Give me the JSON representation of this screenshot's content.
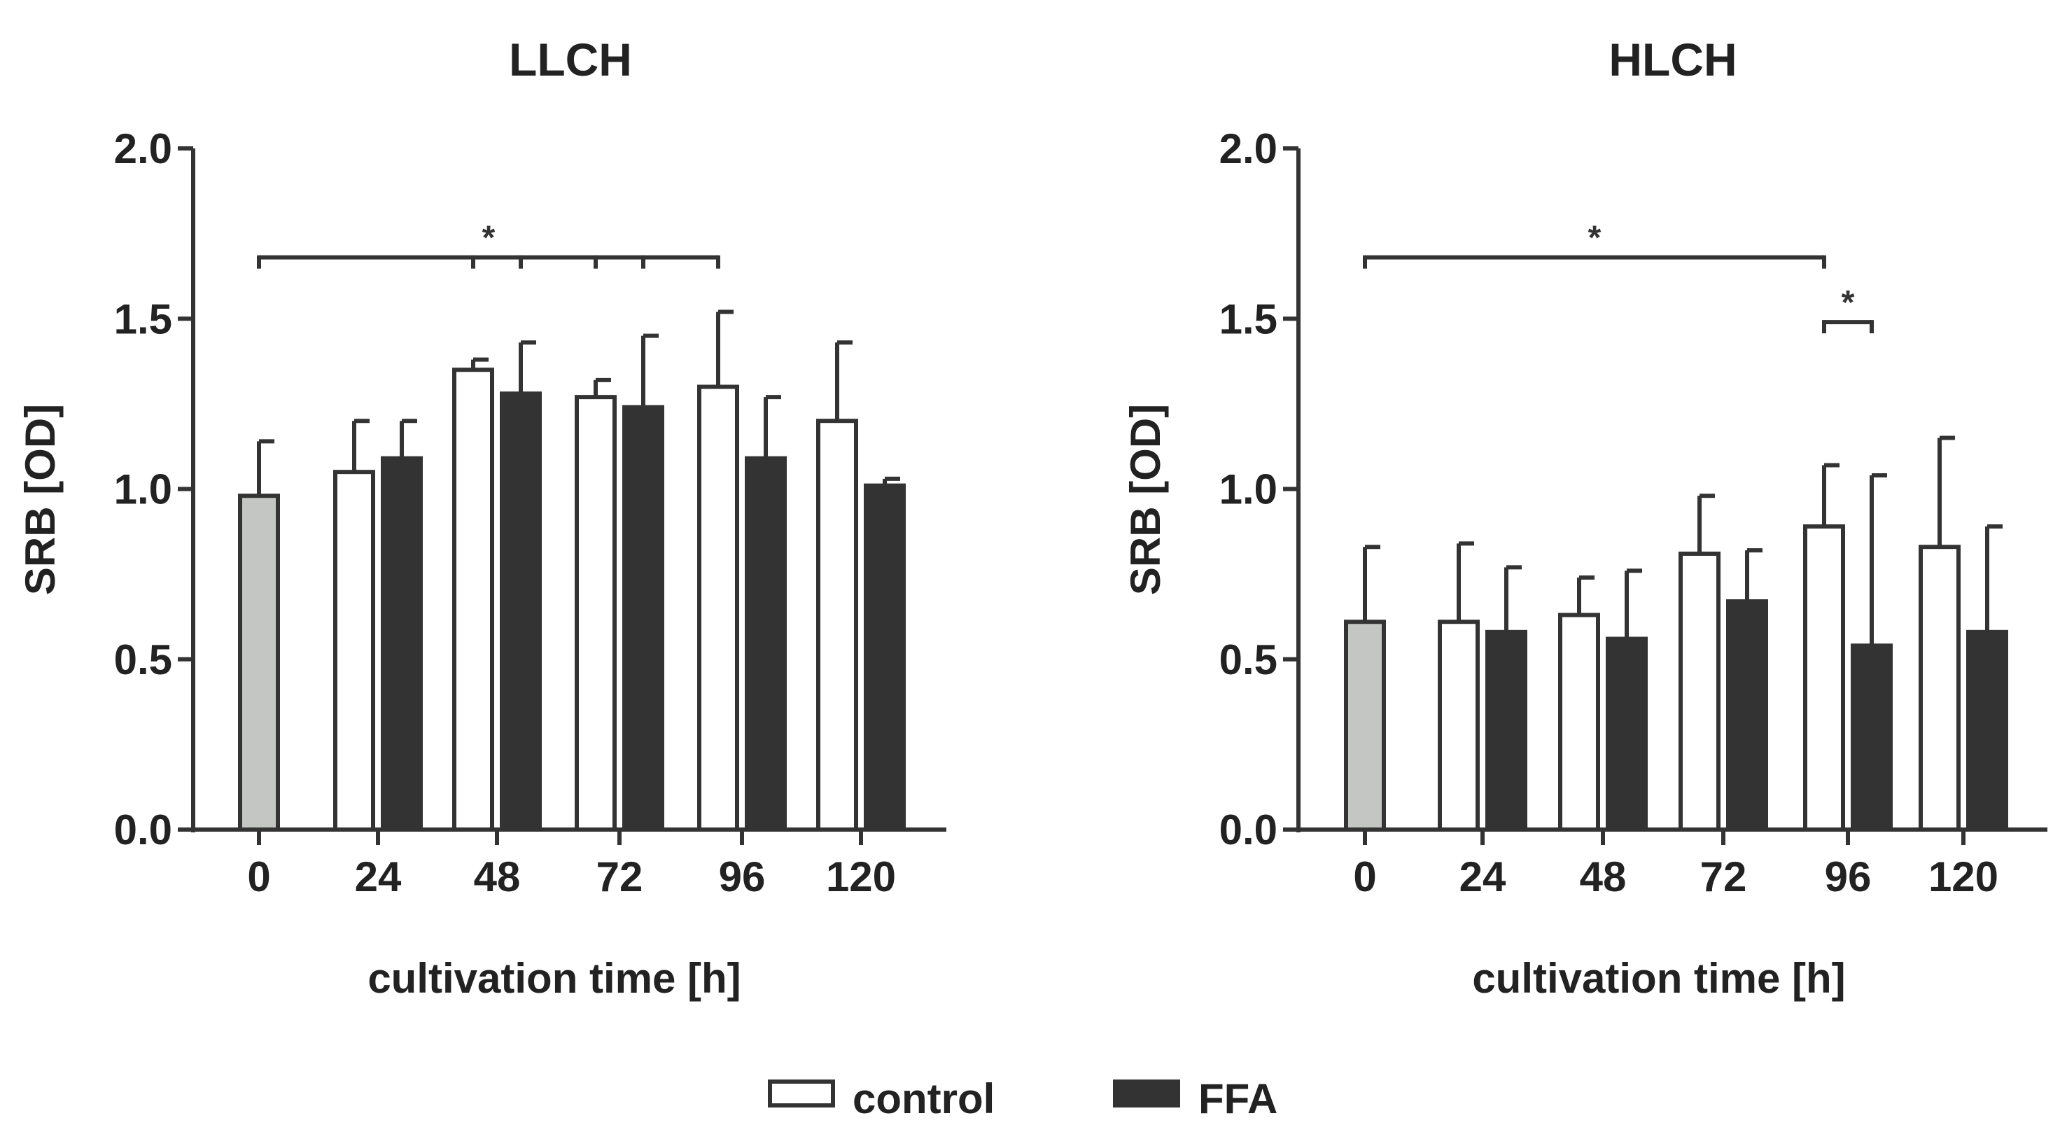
{
  "chart_data": [
    {
      "type": "bar",
      "title": "LLCH",
      "xlabel": "cultivation time [h]",
      "ylabel": "SRB [OD]",
      "ylim": [
        0,
        2.0
      ],
      "yticks": [
        "0.0",
        "0.5",
        "1.0",
        "1.5",
        "2.0"
      ],
      "categories": [
        "0",
        "24",
        "48",
        "72",
        "96",
        "120"
      ],
      "baseline": {
        "category": "0",
        "value": 0.98,
        "error": 0.16,
        "color": "#c4c6c4"
      },
      "series": [
        {
          "name": "control",
          "color": "#ffffff",
          "values": [
            null,
            1.05,
            1.35,
            1.27,
            1.3,
            1.2
          ],
          "errors": [
            null,
            0.15,
            0.03,
            0.05,
            0.22,
            0.23
          ]
        },
        {
          "name": "FFA",
          "color": "#333333",
          "values": [
            null,
            1.09,
            1.28,
            1.24,
            1.09,
            1.01
          ],
          "errors": [
            null,
            0.11,
            0.15,
            0.21,
            0.18,
            0.02
          ]
        }
      ],
      "significance": [
        {
          "label": "*",
          "from": "0",
          "to": "96",
          "level": 1.68,
          "ticks": [
            "0",
            "48 control",
            "48 FFA",
            "72 control",
            "72 FFA",
            "96 control"
          ]
        }
      ]
    },
    {
      "type": "bar",
      "title": "HLCH",
      "xlabel": "cultivation time [h]",
      "ylabel": "SRB [OD]",
      "ylim": [
        0,
        2.0
      ],
      "yticks": [
        "0.0",
        "0.5",
        "1.0",
        "1.5",
        "2.0"
      ],
      "categories": [
        "0",
        "24",
        "48",
        "72",
        "96",
        "120"
      ],
      "baseline": {
        "category": "0",
        "value": 0.61,
        "error": 0.22,
        "color": "#c4c6c4"
      },
      "series": [
        {
          "name": "control",
          "color": "#ffffff",
          "values": [
            null,
            0.61,
            0.63,
            0.81,
            0.89,
            0.83
          ],
          "errors": [
            null,
            0.23,
            0.11,
            0.17,
            0.18,
            0.32
          ]
        },
        {
          "name": "FFA",
          "color": "#333333",
          "values": [
            null,
            0.58,
            0.56,
            0.67,
            0.54,
            0.58
          ],
          "errors": [
            null,
            0.19,
            0.2,
            0.15,
            0.5,
            0.31
          ]
        }
      ],
      "significance": [
        {
          "label": "*",
          "from": "0",
          "to": "96 control",
          "level": 1.68
        },
        {
          "label": "*",
          "from": "96 control",
          "to": "96 FFA",
          "level": 1.49
        }
      ]
    }
  ],
  "legend": [
    {
      "label": "control",
      "color": "#ffffff"
    },
    {
      "label": "FFA",
      "color": "#333333"
    }
  ]
}
